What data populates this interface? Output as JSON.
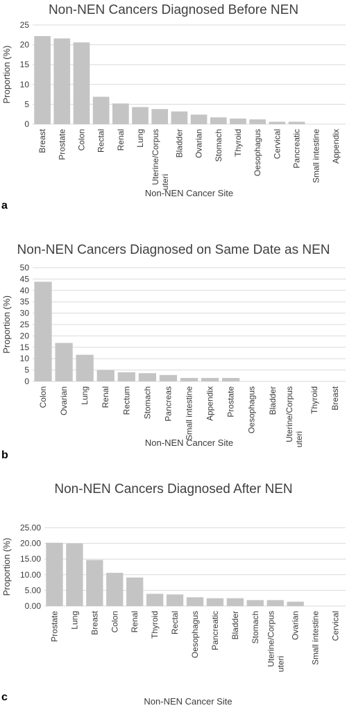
{
  "chart_data": [
    {
      "type": "bar",
      "panel_label": "a",
      "title": "Non-NEN Cancers Diagnosed Before NEN",
      "xlabel": "Non-NEN Cancer Site",
      "ylabel": "Proportion (%)",
      "ylim": [
        0,
        25
      ],
      "yticks": [
        "0",
        "5",
        "10",
        "15",
        "20",
        "25"
      ],
      "grid": true,
      "categories": [
        "Breast",
        "Prostate",
        "Colon",
        "Rectal",
        "Renal",
        "Lung",
        "Uterine/Corpus uteri",
        "Bladder",
        "Ovarian",
        "Stomach",
        "Thyroid",
        "Oesophagus",
        "Cervical",
        "Pancreatic",
        "Small intestine",
        "Appendix"
      ],
      "values": [
        22.2,
        21.6,
        20.6,
        6.9,
        5.2,
        4.3,
        3.8,
        3.2,
        2.4,
        1.7,
        1.4,
        1.2,
        0.6,
        0.6,
        0,
        0
      ]
    },
    {
      "type": "bar",
      "panel_label": "b",
      "title": "Non-NEN Cancers Diagnosed on Same Date as NEN",
      "xlabel": "Non-NEN Cancer Site",
      "ylabel": "Proportion (%)",
      "ylim": [
        0,
        50
      ],
      "yticks": [
        "0",
        "5",
        "10",
        "15",
        "20",
        "25",
        "30",
        "35",
        "40",
        "45",
        "50"
      ],
      "grid": true,
      "categories": [
        "Colon",
        "Ovarian",
        "Lung",
        "Renal",
        "Rectum",
        "Stomach",
        "Pancreas",
        "Small intestine",
        "Appendix",
        "Prostate",
        "Oesophagus",
        "Bladder",
        "Uterine/Corpus uteri",
        "Thyroid",
        "Breast"
      ],
      "values": [
        43.8,
        16.9,
        11.7,
        5.0,
        4.0,
        3.6,
        2.8,
        1.5,
        1.5,
        1.5,
        0,
        0,
        0,
        0,
        0
      ]
    },
    {
      "type": "bar",
      "panel_label": "c",
      "title": "Non-NEN Cancers Diagnosed After NEN",
      "xlabel": "Non-NEN Cancer Site",
      "ylabel": "Proportion (%)",
      "ylim": [
        0,
        25
      ],
      "yticks": [
        "0.00",
        "5.00",
        "10.00",
        "15.00",
        "20.00",
        "25.00"
      ],
      "grid": true,
      "categories": [
        "Prostate",
        "Lung",
        "Breast",
        "Colon",
        "Renal",
        "Thyroid",
        "Rectal",
        "Oesophagus",
        "Pancreatic",
        "Bladder",
        "Stomach",
        "Uterine/Corpus uteri",
        "Ovarian",
        "Small intestine",
        "Cervical"
      ],
      "values": [
        20.2,
        20.0,
        14.7,
        10.6,
        9.1,
        3.9,
        3.7,
        2.8,
        2.5,
        2.5,
        1.9,
        1.9,
        1.4,
        0,
        0
      ]
    }
  ]
}
